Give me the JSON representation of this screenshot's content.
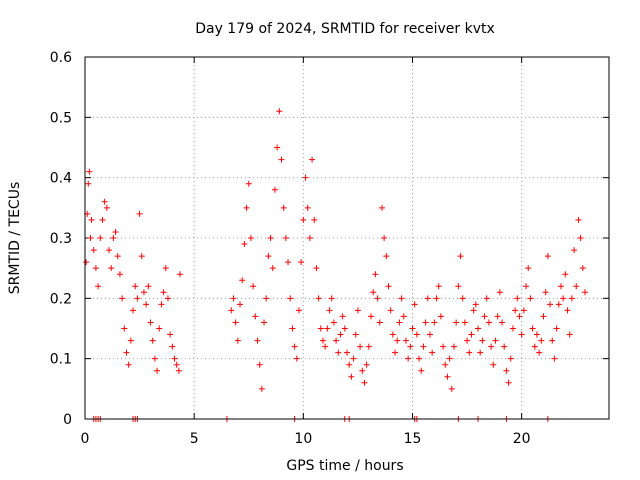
{
  "chart_data": {
    "type": "scatter",
    "title": "Day 179 of 2024, SRMTID for receiver kvtx",
    "xlabel": "GPS time / hours",
    "ylabel": "SRMTID / TECUs",
    "xlim": [
      0,
      24
    ],
    "ylim": [
      0,
      0.6
    ],
    "xticks": [
      0,
      5,
      10,
      15,
      20
    ],
    "xtick_labels": [
      "0",
      "5",
      "10",
      "15",
      "20"
    ],
    "yticks": [
      0,
      0.1,
      0.2,
      0.3,
      0.4,
      0.5,
      0.6
    ],
    "ytick_labels": [
      "0",
      "0.1",
      "0.2",
      "0.3",
      "0.4",
      "0.5",
      "0.6"
    ],
    "grid": true,
    "marker": "+",
    "color": "#ff0000",
    "series": [
      {
        "name": "SRMTID",
        "points": [
          [
            0.05,
            0.26
          ],
          [
            0.1,
            0.34
          ],
          [
            0.15,
            0.39
          ],
          [
            0.2,
            0.41
          ],
          [
            0.25,
            0.3
          ],
          [
            0.3,
            0.33
          ],
          [
            0.4,
            0.28
          ],
          [
            0.5,
            0.25
          ],
          [
            0.6,
            0.22
          ],
          [
            0.7,
            0.3
          ],
          [
            0.8,
            0.33
          ],
          [
            0.9,
            0.36
          ],
          [
            1.0,
            0.35
          ],
          [
            1.1,
            0.28
          ],
          [
            1.2,
            0.25
          ],
          [
            1.3,
            0.3
          ],
          [
            1.4,
            0.31
          ],
          [
            1.5,
            0.27
          ],
          [
            1.6,
            0.24
          ],
          [
            1.7,
            0.2
          ],
          [
            1.8,
            0.15
          ],
          [
            1.9,
            0.11
          ],
          [
            2.0,
            0.09
          ],
          [
            2.1,
            0.13
          ],
          [
            2.2,
            0.18
          ],
          [
            2.3,
            0.22
          ],
          [
            2.4,
            0.2
          ],
          [
            2.5,
            0.34
          ],
          [
            2.6,
            0.27
          ],
          [
            2.7,
            0.21
          ],
          [
            2.8,
            0.19
          ],
          [
            2.9,
            0.22
          ],
          [
            3.0,
            0.16
          ],
          [
            3.1,
            0.13
          ],
          [
            3.2,
            0.1
          ],
          [
            3.3,
            0.08
          ],
          [
            3.4,
            0.15
          ],
          [
            3.5,
            0.19
          ],
          [
            3.6,
            0.21
          ],
          [
            3.7,
            0.25
          ],
          [
            3.8,
            0.2
          ],
          [
            3.9,
            0.14
          ],
          [
            4.0,
            0.12
          ],
          [
            4.1,
            0.1
          ],
          [
            4.2,
            0.09
          ],
          [
            4.3,
            0.08
          ],
          [
            4.35,
            0.24
          ],
          [
            6.7,
            0.18
          ],
          [
            6.8,
            0.2
          ],
          [
            6.9,
            0.16
          ],
          [
            7.0,
            0.13
          ],
          [
            7.1,
            0.19
          ],
          [
            7.2,
            0.23
          ],
          [
            7.3,
            0.29
          ],
          [
            7.4,
            0.35
          ],
          [
            7.5,
            0.39
          ],
          [
            7.6,
            0.3
          ],
          [
            7.7,
            0.22
          ],
          [
            7.8,
            0.17
          ],
          [
            7.9,
            0.13
          ],
          [
            8.0,
            0.09
          ],
          [
            8.1,
            0.05
          ],
          [
            8.2,
            0.16
          ],
          [
            8.3,
            0.2
          ],
          [
            8.4,
            0.27
          ],
          [
            8.5,
            0.3
          ],
          [
            8.6,
            0.25
          ],
          [
            8.7,
            0.38
          ],
          [
            8.8,
            0.45
          ],
          [
            8.9,
            0.51
          ],
          [
            9.0,
            0.43
          ],
          [
            9.1,
            0.35
          ],
          [
            9.2,
            0.3
          ],
          [
            9.3,
            0.26
          ],
          [
            9.4,
            0.2
          ],
          [
            9.5,
            0.15
          ],
          [
            9.6,
            0.12
          ],
          [
            9.7,
            0.1
          ],
          [
            9.8,
            0.18
          ],
          [
            9.9,
            0.26
          ],
          [
            10.0,
            0.33
          ],
          [
            10.1,
            0.4
          ],
          [
            10.2,
            0.35
          ],
          [
            10.3,
            0.3
          ],
          [
            10.4,
            0.43
          ],
          [
            10.5,
            0.33
          ],
          [
            10.6,
            0.25
          ],
          [
            10.7,
            0.2
          ],
          [
            10.8,
            0.15
          ],
          [
            10.9,
            0.13
          ],
          [
            11.0,
            0.12
          ],
          [
            11.1,
            0.15
          ],
          [
            11.2,
            0.18
          ],
          [
            11.3,
            0.2
          ],
          [
            11.4,
            0.16
          ],
          [
            11.5,
            0.13
          ],
          [
            11.6,
            0.11
          ],
          [
            11.7,
            0.14
          ],
          [
            11.8,
            0.17
          ],
          [
            11.9,
            0.15
          ],
          [
            12.0,
            0.11
          ],
          [
            12.1,
            0.09
          ],
          [
            12.2,
            0.07
          ],
          [
            12.3,
            0.1
          ],
          [
            12.4,
            0.14
          ],
          [
            12.5,
            0.18
          ],
          [
            12.6,
            0.12
          ],
          [
            12.7,
            0.08
          ],
          [
            12.8,
            0.06
          ],
          [
            12.9,
            0.09
          ],
          [
            13.0,
            0.12
          ],
          [
            13.1,
            0.17
          ],
          [
            13.2,
            0.21
          ],
          [
            13.3,
            0.24
          ],
          [
            13.4,
            0.2
          ],
          [
            13.5,
            0.16
          ],
          [
            13.6,
            0.35
          ],
          [
            13.7,
            0.3
          ],
          [
            13.8,
            0.27
          ],
          [
            13.9,
            0.22
          ],
          [
            14.0,
            0.18
          ],
          [
            14.1,
            0.14
          ],
          [
            14.2,
            0.11
          ],
          [
            14.3,
            0.13
          ],
          [
            14.4,
            0.16
          ],
          [
            14.5,
            0.2
          ],
          [
            14.6,
            0.17
          ],
          [
            14.7,
            0.13
          ],
          [
            14.8,
            0.1
          ],
          [
            14.9,
            0.12
          ],
          [
            15.0,
            0.15
          ],
          [
            15.1,
            0.19
          ],
          [
            15.2,
            0.14
          ],
          [
            15.3,
            0.1
          ],
          [
            15.4,
            0.08
          ],
          [
            15.5,
            0.12
          ],
          [
            15.6,
            0.16
          ],
          [
            15.7,
            0.2
          ],
          [
            15.8,
            0.14
          ],
          [
            15.9,
            0.11
          ],
          [
            16.0,
            0.16
          ],
          [
            16.1,
            0.2
          ],
          [
            16.2,
            0.22
          ],
          [
            16.3,
            0.17
          ],
          [
            16.4,
            0.12
          ],
          [
            16.5,
            0.09
          ],
          [
            16.6,
            0.07
          ],
          [
            16.7,
            0.1
          ],
          [
            16.8,
            0.05
          ],
          [
            16.9,
            0.12
          ],
          [
            17.0,
            0.16
          ],
          [
            17.1,
            0.22
          ],
          [
            17.2,
            0.27
          ],
          [
            17.3,
            0.2
          ],
          [
            17.4,
            0.16
          ],
          [
            17.5,
            0.13
          ],
          [
            17.6,
            0.11
          ],
          [
            17.7,
            0.14
          ],
          [
            17.8,
            0.18
          ],
          [
            17.9,
            0.19
          ],
          [
            18.0,
            0.15
          ],
          [
            18.1,
            0.11
          ],
          [
            18.2,
            0.13
          ],
          [
            18.3,
            0.17
          ],
          [
            18.4,
            0.2
          ],
          [
            18.5,
            0.16
          ],
          [
            18.6,
            0.12
          ],
          [
            18.7,
            0.09
          ],
          [
            18.8,
            0.13
          ],
          [
            18.9,
            0.17
          ],
          [
            19.0,
            0.21
          ],
          [
            19.1,
            0.16
          ],
          [
            19.2,
            0.12
          ],
          [
            19.3,
            0.08
          ],
          [
            19.4,
            0.06
          ],
          [
            19.5,
            0.1
          ],
          [
            19.6,
            0.15
          ],
          [
            19.7,
            0.18
          ],
          [
            19.8,
            0.2
          ],
          [
            19.9,
            0.17
          ],
          [
            20.0,
            0.14
          ],
          [
            20.1,
            0.18
          ],
          [
            20.2,
            0.22
          ],
          [
            20.3,
            0.25
          ],
          [
            20.4,
            0.2
          ],
          [
            20.5,
            0.15
          ],
          [
            20.6,
            0.12
          ],
          [
            20.7,
            0.14
          ],
          [
            20.8,
            0.11
          ],
          [
            20.9,
            0.13
          ],
          [
            21.0,
            0.17
          ],
          [
            21.1,
            0.21
          ],
          [
            21.2,
            0.27
          ],
          [
            21.3,
            0.19
          ],
          [
            21.4,
            0.13
          ],
          [
            21.5,
            0.1
          ],
          [
            21.6,
            0.15
          ],
          [
            21.7,
            0.19
          ],
          [
            21.8,
            0.22
          ],
          [
            21.9,
            0.2
          ],
          [
            22.0,
            0.24
          ],
          [
            22.1,
            0.18
          ],
          [
            22.2,
            0.14
          ],
          [
            22.3,
            0.2
          ],
          [
            22.4,
            0.28
          ],
          [
            22.5,
            0.22
          ],
          [
            22.6,
            0.33
          ],
          [
            22.7,
            0.3
          ],
          [
            22.8,
            0.25
          ],
          [
            22.9,
            0.21
          ]
        ]
      }
    ],
    "zero_line_marks_hours": [
      0.4,
      0.5,
      0.6,
      0.7,
      2.2,
      2.3,
      2.4,
      6.5,
      9.6,
      11.9,
      12.1,
      15.1,
      15.2,
      17.1,
      18.0,
      19.3,
      21.2
    ]
  }
}
